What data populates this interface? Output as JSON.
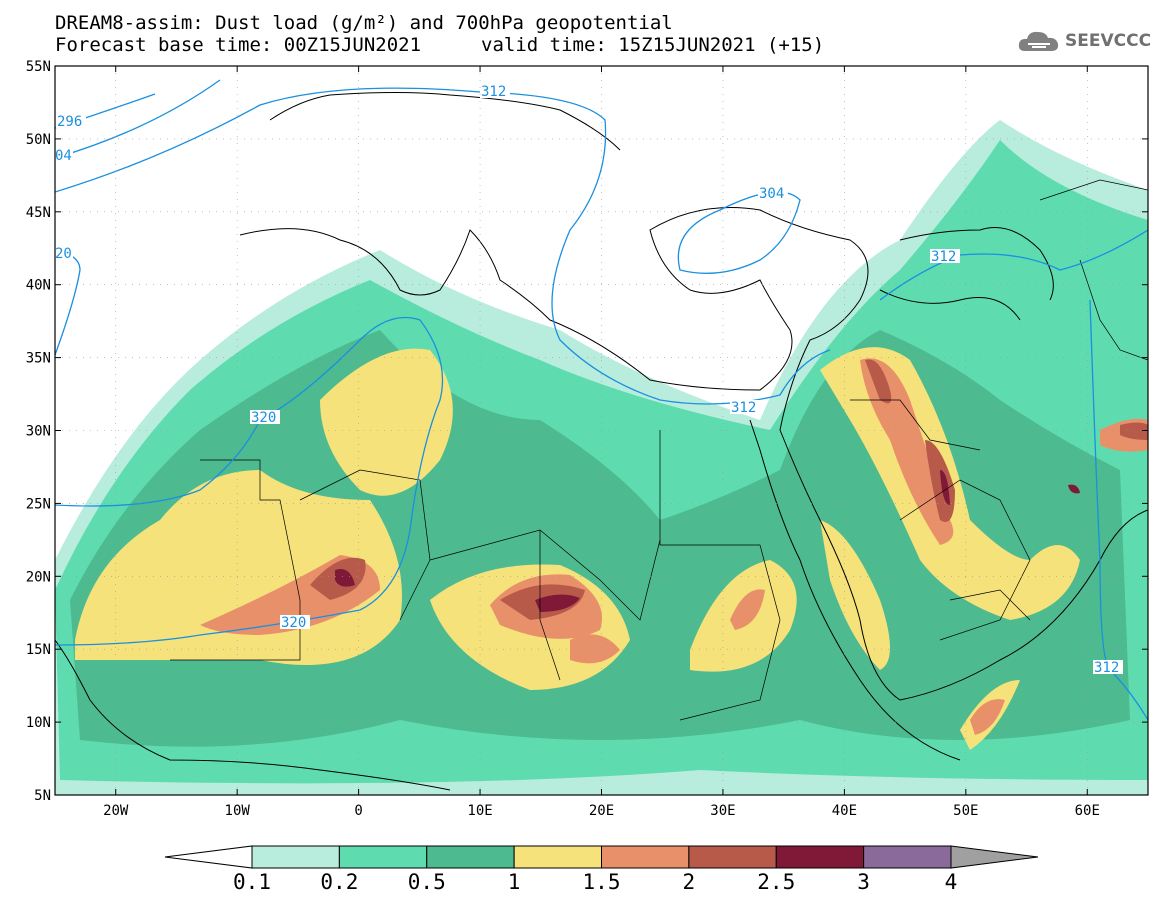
{
  "header": {
    "title_line1": "DREAM8-assim: Dust load (g/m²) and 700hPa geopotential",
    "title_line2_left": "Forecast base time: 00Z15JUN2021",
    "title_line2_right": "valid time: 15Z15JUN2021 (+15)"
  },
  "logo": {
    "text": "SEEVCCC",
    "icon": "cloud-icon"
  },
  "map": {
    "lat_labels": [
      "55N",
      "50N",
      "45N",
      "40N",
      "35N",
      "30N",
      "25N",
      "20N",
      "15N",
      "10N",
      "5N"
    ],
    "lon_labels": [
      "20W",
      "10W",
      "0",
      "10E",
      "20E",
      "30E",
      "40E",
      "50E",
      "60E"
    ],
    "contour_labels": [
      "296",
      "04",
      "312",
      "320",
      "20",
      "320",
      "312",
      "304",
      "312",
      "312"
    ],
    "geopotential_levels": [
      296,
      304,
      312,
      320
    ]
  },
  "colorbar": {
    "labels": [
      "0.1",
      "0.2",
      "0.5",
      "1",
      "1.5",
      "2",
      "2.5",
      "3",
      "4"
    ],
    "colors": [
      "#ffffff",
      "#b8ecdd",
      "#5edcb0",
      "#4dba90",
      "#f5e27a",
      "#e8906a",
      "#b85a4a",
      "#801838",
      "#8a6a9a",
      "#a0a0a0"
    ]
  },
  "colors": {
    "land_line": "#000000",
    "contour": "#1a90e0",
    "dust_01": "#b8ecdd",
    "dust_02": "#5edcb0",
    "dust_05": "#4dba90",
    "dust_1": "#f5e27a",
    "dust_15": "#e8906a",
    "dust_2": "#b85a4a",
    "dust_25": "#801838"
  }
}
